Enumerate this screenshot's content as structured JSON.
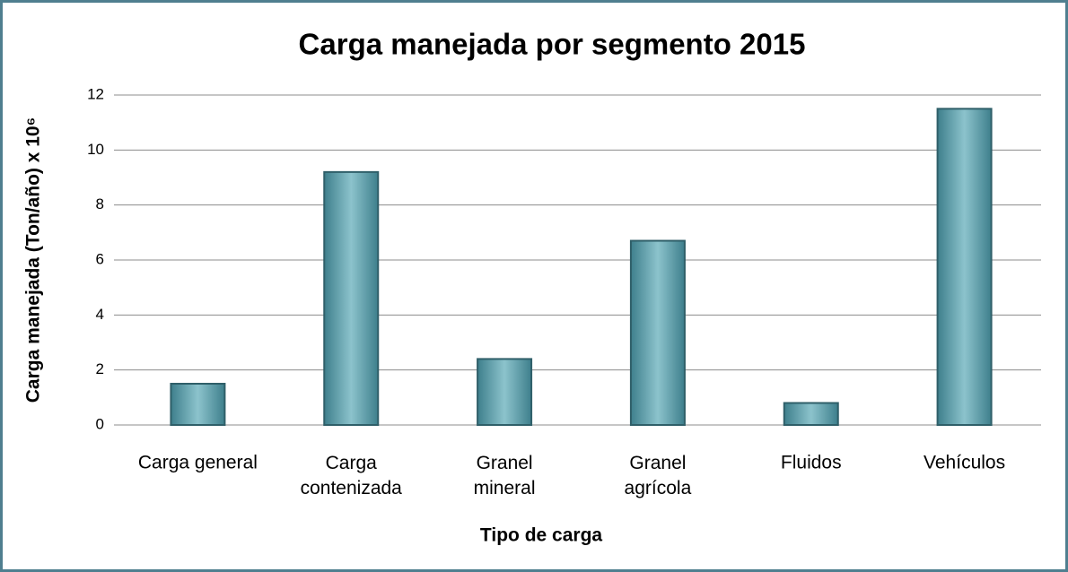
{
  "chart_data": {
    "type": "bar",
    "title": "Carga manejada por segmento 2015",
    "x_label": "Tipo de carga",
    "y_label": "Carga manejada (Ton/año) x 10⁶",
    "categories": [
      "Carga general",
      "Carga contenizada",
      "Granel mineral",
      "Granel agrícola",
      "Fluidos",
      "Vehículos"
    ],
    "values": [
      1.5,
      9.2,
      2.4,
      6.7,
      0.8,
      11.5
    ],
    "color": "#4f97a3",
    "ylim": [
      0,
      12
    ],
    "yticks": [
      0,
      2,
      4,
      6,
      8,
      10,
      12
    ],
    "grid": true
  }
}
